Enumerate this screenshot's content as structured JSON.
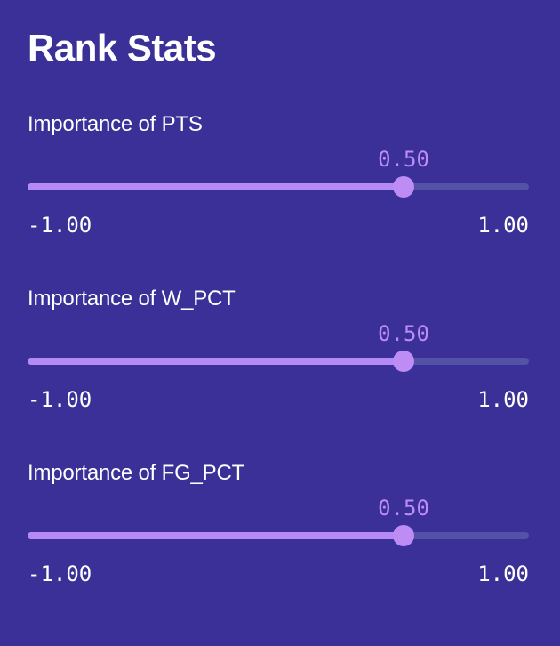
{
  "title": "Rank Stats",
  "accent_color": "#bd8cf5",
  "background_color": "#3a3097",
  "sliders": [
    {
      "label": "Importance of PTS",
      "value": 0.5,
      "value_text": "0.50",
      "min": -1.0,
      "max": 1.0,
      "min_text": "-1.00",
      "max_text": "1.00"
    },
    {
      "label": "Importance of W_PCT",
      "value": 0.5,
      "value_text": "0.50",
      "min": -1.0,
      "max": 1.0,
      "min_text": "-1.00",
      "max_text": "1.00"
    },
    {
      "label": "Importance of FG_PCT",
      "value": 0.5,
      "value_text": "0.50",
      "min": -1.0,
      "max": 1.0,
      "min_text": "-1.00",
      "max_text": "1.00"
    }
  ]
}
